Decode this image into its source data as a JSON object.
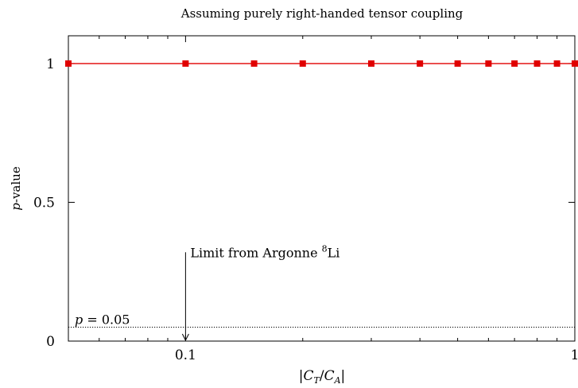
{
  "chart_data": {
    "type": "line",
    "title": "Assuming purely right-handed tensor coupling",
    "xlabel": "|C_T/C_A|",
    "ylabel": "p-value",
    "x_scale": "log",
    "xlim": [
      0.05,
      1
    ],
    "ylim": [
      0,
      1.1
    ],
    "x_ticks": [
      0.1,
      1
    ],
    "x_tick_labels": [
      "0.1",
      "1"
    ],
    "y_ticks": [
      0,
      0.5,
      1
    ],
    "y_tick_labels": [
      "0",
      "0.5",
      "1"
    ],
    "grid": false,
    "series": [
      {
        "color": "#e00000",
        "marker": "square",
        "x": [
          0.05,
          0.1,
          0.15,
          0.2,
          0.3,
          0.4,
          0.5,
          0.6,
          0.7,
          0.8,
          0.9,
          1.0
        ],
        "y": [
          1,
          1,
          1,
          1,
          1,
          1,
          1,
          1,
          1,
          1,
          1,
          1
        ]
      }
    ],
    "reference_line": {
      "y": 0.05,
      "label": "p = 0.05"
    },
    "annotation": {
      "x": 0.1,
      "y_from": 0.3,
      "y_to": 0.0,
      "label": "Limit from Argonne 8Li"
    }
  }
}
